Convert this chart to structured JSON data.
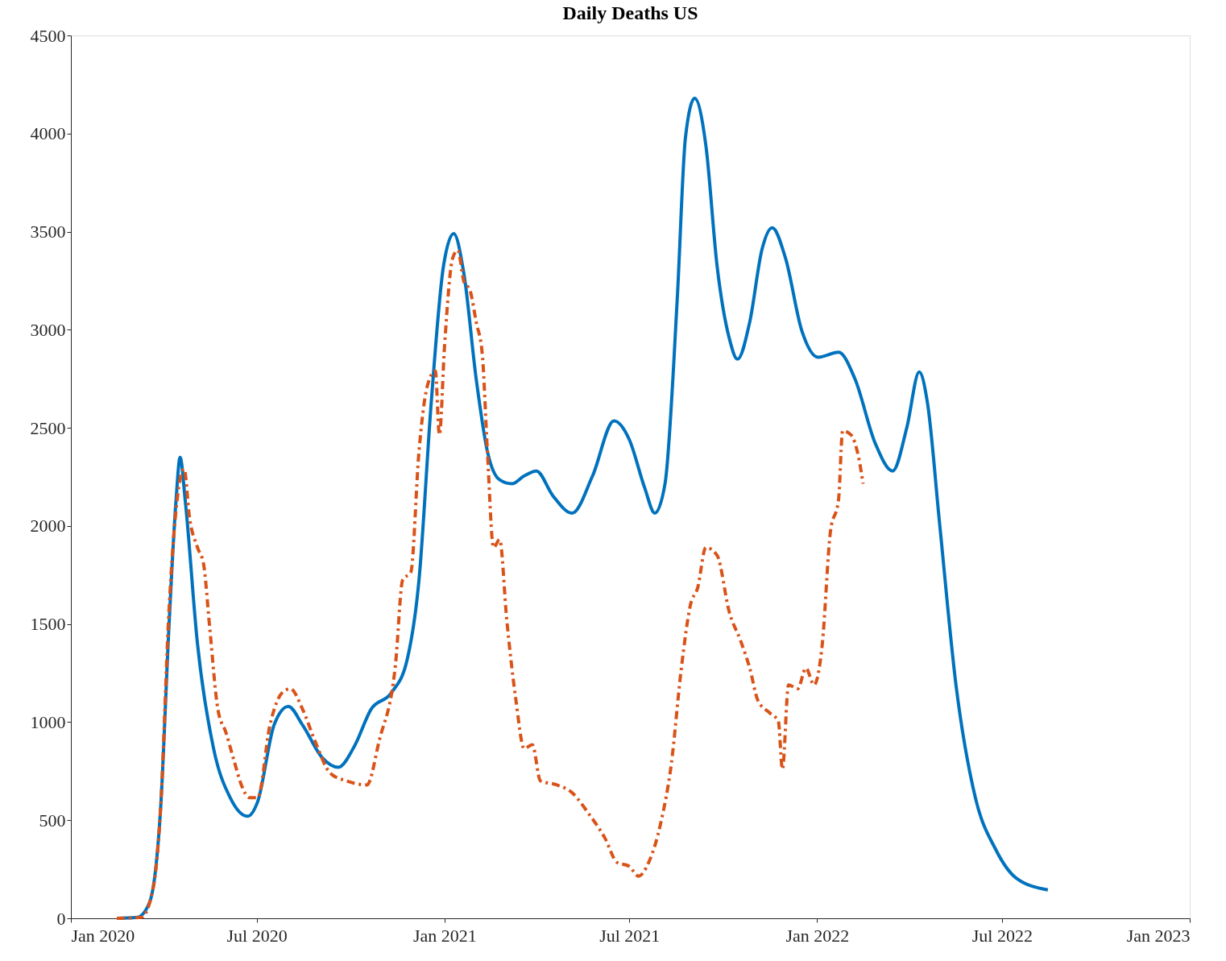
{
  "chart_data": {
    "type": "line",
    "title": "Daily Deaths US",
    "xlim": [
      "2020-01-01",
      "2023-01-01"
    ],
    "xticks": [
      {
        "value": "2020-01-01",
        "label": "Jan 2020"
      },
      {
        "value": "2020-07-01",
        "label": "Jul 2020"
      },
      {
        "value": "2021-01-01",
        "label": "Jan 2021"
      },
      {
        "value": "2021-07-01",
        "label": "Jul 2021"
      },
      {
        "value": "2022-01-01",
        "label": "Jan 2022"
      },
      {
        "value": "2022-07-01",
        "label": "Jul 2022"
      },
      {
        "value": "2023-01-01",
        "label": "Jan 2023"
      }
    ],
    "ylim": [
      0,
      4500
    ],
    "yticks": [
      0,
      500,
      1000,
      1500,
      2000,
      2500,
      3000,
      3500,
      4000,
      4500
    ],
    "grid": false,
    "series": [
      {
        "color": "#0072bd",
        "line_style": "solid",
        "x": [
          "2020-02-15",
          "2020-03-06",
          "2020-03-18",
          "2020-03-29",
          "2020-04-06",
          "2020-04-13",
          "2020-04-17",
          "2020-04-22",
          "2020-05-04",
          "2020-05-20",
          "2020-06-05",
          "2020-06-22",
          "2020-07-02",
          "2020-07-18",
          "2020-08-01",
          "2020-08-15",
          "2020-09-03",
          "2020-09-19",
          "2020-10-05",
          "2020-10-21",
          "2020-11-10",
          "2020-11-25",
          "2020-12-07",
          "2020-12-19",
          "2020-12-31",
          "2021-01-10",
          "2021-01-20",
          "2021-02-01",
          "2021-02-12",
          "2021-02-24",
          "2021-03-08",
          "2021-03-20",
          "2021-04-01",
          "2021-04-17",
          "2021-05-06",
          "2021-05-26",
          "2021-06-16",
          "2021-07-01",
          "2021-07-16",
          "2021-07-26",
          "2021-08-05",
          "2021-08-17",
          "2021-08-25",
          "2021-09-03",
          "2021-09-14",
          "2021-09-25",
          "2021-10-07",
          "2021-10-15",
          "2021-10-27",
          "2021-11-08",
          "2021-11-18",
          "2021-12-01",
          "2021-12-17",
          "2022-01-02",
          "2022-01-22",
          "2022-02-07",
          "2022-02-27",
          "2022-03-16",
          "2022-03-30",
          "2022-04-11",
          "2022-04-19",
          "2022-05-01",
          "2022-05-17",
          "2022-06-05",
          "2022-06-25",
          "2022-07-15",
          "2022-08-15"
        ],
        "values": [
          0,
          5,
          80,
          570,
          1480,
          2130,
          2350,
          2130,
          1400,
          860,
          615,
          520,
          595,
          985,
          1080,
          985,
          820,
          770,
          880,
          1065,
          1150,
          1310,
          1725,
          2630,
          3325,
          3490,
          3285,
          2750,
          2380,
          2235,
          2215,
          2255,
          2280,
          2155,
          2065,
          2255,
          2535,
          2440,
          2195,
          2065,
          2215,
          3160,
          3980,
          4180,
          3940,
          3325,
          2955,
          2850,
          3040,
          3410,
          3520,
          3365,
          2995,
          2860,
          2885,
          2750,
          2420,
          2280,
          2505,
          2785,
          2630,
          2010,
          1190,
          615,
          350,
          205,
          145
        ]
      },
      {
        "color": "#d95319",
        "line_style": "dashed",
        "x": [
          "2020-02-15",
          "2020-03-10",
          "2020-03-22",
          "2020-03-29",
          "2020-04-06",
          "2020-04-14",
          "2020-04-21",
          "2020-04-26",
          "2020-05-04",
          "2020-05-10",
          "2020-05-16",
          "2020-05-24",
          "2020-06-01",
          "2020-06-09",
          "2020-06-16",
          "2020-06-24",
          "2020-07-02",
          "2020-07-14",
          "2020-07-26",
          "2020-08-03",
          "2020-08-15",
          "2020-08-27",
          "2020-09-11",
          "2020-09-27",
          "2020-10-17",
          "2020-10-29",
          "2020-11-14",
          "2020-11-21",
          "2020-11-29",
          "2020-12-07",
          "2020-12-15",
          "2020-12-23",
          "2020-12-27",
          "2021-01-01",
          "2021-01-09",
          "2021-01-14",
          "2021-01-20",
          "2021-01-26",
          "2021-02-01",
          "2021-02-07",
          "2021-02-12",
          "2021-02-18",
          "2021-02-24",
          "2021-03-03",
          "2021-03-12",
          "2021-03-20",
          "2021-03-28",
          "2021-04-05",
          "2021-04-21",
          "2021-05-06",
          "2021-05-22",
          "2021-06-07",
          "2021-06-19",
          "2021-07-01",
          "2021-07-10",
          "2021-07-20",
          "2021-08-01",
          "2021-08-11",
          "2021-08-21",
          "2021-08-30",
          "2021-09-06",
          "2021-09-14",
          "2021-09-25",
          "2021-10-07",
          "2021-10-18",
          "2021-10-27",
          "2021-11-04",
          "2021-11-16",
          "2021-11-24",
          "2021-11-28",
          "2021-12-04",
          "2021-12-13",
          "2021-12-21",
          "2021-12-29",
          "2022-01-06",
          "2022-01-14",
          "2022-01-22",
          "2022-01-26",
          "2022-02-03",
          "2022-02-11",
          "2022-02-15"
        ],
        "values": [
          0,
          5,
          165,
          570,
          1560,
          2130,
          2290,
          2050,
          1890,
          1805,
          1480,
          1065,
          945,
          800,
          680,
          615,
          615,
          985,
          1150,
          1170,
          1065,
          905,
          740,
          700,
          680,
          905,
          1295,
          1725,
          1765,
          2380,
          2710,
          2790,
          2465,
          2915,
          3365,
          3405,
          3245,
          3200,
          3040,
          2875,
          2380,
          1890,
          1930,
          1520,
          1110,
          865,
          885,
          700,
          680,
          640,
          535,
          410,
          285,
          265,
          215,
          285,
          490,
          780,
          1275,
          1600,
          1685,
          1890,
          1850,
          1560,
          1415,
          1275,
          1110,
          1045,
          1005,
          760,
          1190,
          1170,
          1275,
          1190,
          1395,
          1970,
          2135,
          2485,
          2465,
          2340,
          2215
        ]
      }
    ]
  }
}
